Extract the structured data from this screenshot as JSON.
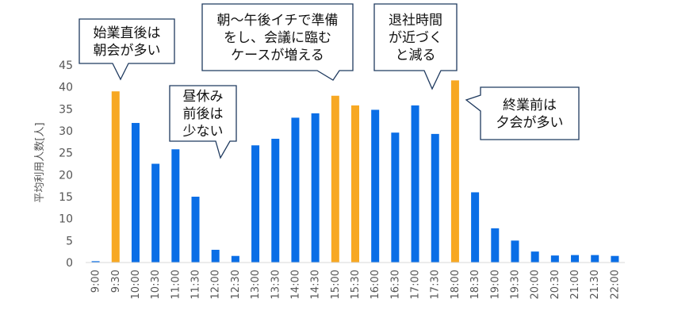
{
  "chart_data": {
    "type": "bar",
    "ylabel": "平均利用人数[人]",
    "ylim": [
      0,
      45
    ],
    "yticks": [
      0,
      5,
      10,
      15,
      20,
      25,
      30,
      35,
      40,
      45
    ],
    "grid": false,
    "categories": [
      "9:00",
      "9:30",
      "10:00",
      "10:30",
      "11:00",
      "11:30",
      "12:00",
      "12:30",
      "13:00",
      "13:30",
      "14:00",
      "14:30",
      "15:00",
      "15:30",
      "16:00",
      "16:30",
      "17:00",
      "17:30",
      "18:00",
      "18:30",
      "19:00",
      "19:30",
      "20:00",
      "20:30",
      "21:00",
      "21:30",
      "22:00"
    ],
    "values": [
      0.3,
      39,
      31.8,
      22.5,
      25.8,
      15,
      2.9,
      1.5,
      26.7,
      28.2,
      33,
      34,
      38,
      35.8,
      34.8,
      29.6,
      35.8,
      29.3,
      41.5,
      16,
      7.8,
      5,
      2.5,
      1.6,
      1.7,
      1.7,
      1.5
    ],
    "highlight_indices": [
      1,
      12,
      13,
      18
    ],
    "colors": {
      "normal": "#0a6ee6",
      "highlight": "#f7a823"
    },
    "annotations": [
      {
        "lines": [
          "始業直後は",
          "朝会が多い"
        ],
        "target_index": 1
      },
      {
        "lines": [
          "昼休み",
          "前後は",
          "少ない"
        ],
        "target_index": 6
      },
      {
        "lines": [
          "朝～午後イチで準備",
          "をし、会議に臨む",
          "ケースが増える"
        ],
        "target_index": 12
      },
      {
        "lines": [
          "退社時間",
          "が近づく",
          "と減る"
        ],
        "target_index": 17
      },
      {
        "lines": [
          "終業前は",
          "夕会が多い"
        ],
        "target_index": 18
      }
    ]
  }
}
